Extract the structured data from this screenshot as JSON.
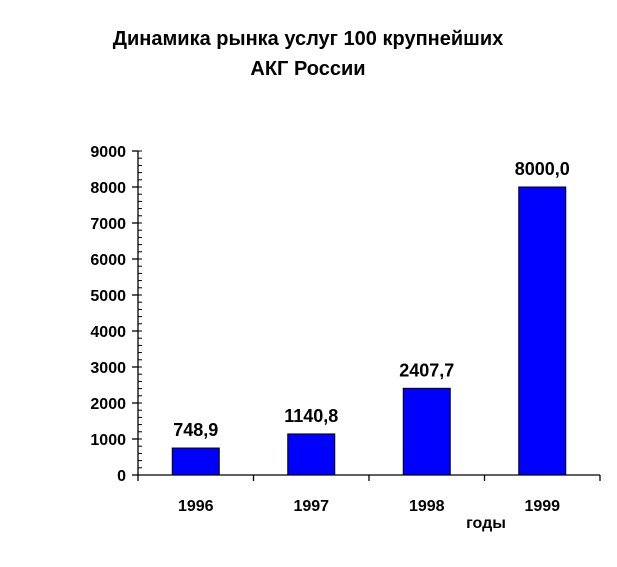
{
  "chart_data": {
    "type": "bar",
    "title": [
      "Динамика рынка услуг 100 крупнейших",
      "АКГ России"
    ],
    "xlabel": "годы",
    "ylabel": "",
    "categories": [
      "1996",
      "1997",
      "1998",
      "1999"
    ],
    "values": [
      748.9,
      1140.8,
      2407.7,
      8000.0
    ],
    "data_labels": [
      "748,9",
      "1140,8",
      "2407,7",
      "8000,0"
    ],
    "ylim": [
      0,
      9000
    ],
    "yticks": [
      0,
      1000,
      2000,
      3000,
      4000,
      5000,
      6000,
      7000,
      8000,
      9000
    ],
    "minor_step": 200,
    "grid": false,
    "legend": "none",
    "bar_color": "#0000FF"
  }
}
